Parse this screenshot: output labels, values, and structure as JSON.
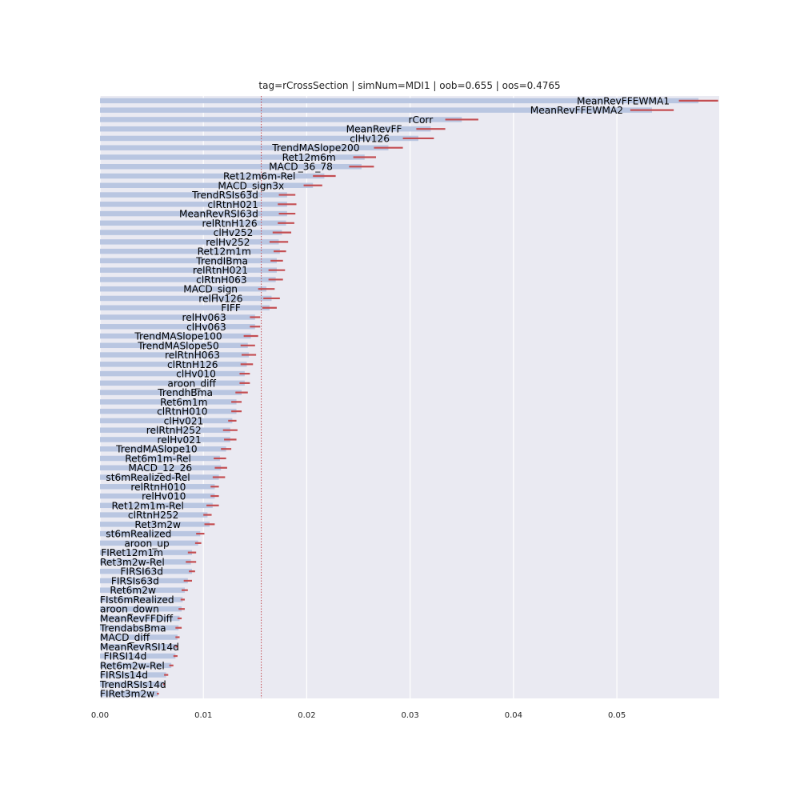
{
  "chart_data": {
    "type": "bar",
    "orientation": "horizontal",
    "title": "tag=rCrossSection | simNum=MDI1 | oob=0.655 | oos=0.4765",
    "xlabel": "",
    "ylabel": "",
    "xlim": [
      0,
      0.0599
    ],
    "xticks": [
      "0.00",
      "0.01",
      "0.02",
      "0.03",
      "0.04",
      "0.05"
    ],
    "xtick_values": [
      0,
      0.01,
      0.02,
      0.03,
      0.04,
      0.05
    ],
    "grid": true,
    "reference_line": 0.0156,
    "bar_color": "#b9c6e1",
    "error_color": "#c44e52",
    "reference_color": "#c44e52",
    "plot_background": "#eaeaf2",
    "categories": [
      "MeanRevFFEWMA1",
      "MeanRevFFEWMA2",
      "rCorr",
      "MeanRevFF",
      "clHv126",
      "TrendMASlope200",
      "Ret12m6m",
      "MACD_36_78",
      "Ret12m6m-Rel",
      "MACD_sign3x",
      "TrendRSIs63d",
      "clRtnH021",
      "MeanRevRSI63d",
      "relRtnH126",
      "clHv252",
      "relHv252",
      "Ret12m1m",
      "TrendIBma",
      "relRtnH021",
      "clRtnH063",
      "MACD_sign",
      "relHv126",
      "FIFF",
      "relHv063",
      "clHv063",
      "TrendMASlope100",
      "TrendMASlope50",
      "relRtnH063",
      "clRtnH126",
      "clHv010",
      "aroon_diff",
      "TrendhBma",
      "Ret6m1m",
      "clRtnH010",
      "clHv021",
      "relRtnH252",
      "relHv021",
      "TrendMASlope10",
      "Ret6m1m-Rel",
      "MACD_12_26",
      "st6mRealized-Rel",
      "relRtnH010",
      "relHv010",
      "Ret12m1m-Rel",
      "clRtnH252",
      "Ret3m2w",
      "st6mRealized",
      "aroon_up",
      "FIRet12m1m",
      "Ret3m2w-Rel",
      "FIRSI63d",
      "FIRSIs63d",
      "Ret6m2w",
      "FIst6mRealized",
      "aroon_down",
      "MeanRevFFDiff",
      "TrendabsBma",
      "MACD_diff",
      "MeanRevRSI14d",
      "FIRSI14d",
      "Ret6m2w-Rel",
      "FIRSIs14d",
      "TrendRSIs14d",
      "FIRet3m2w"
    ],
    "values": [
      0.0579,
      0.0534,
      0.035,
      0.032,
      0.0308,
      0.0279,
      0.0256,
      0.0253,
      0.0217,
      0.0206,
      0.0181,
      0.0181,
      0.0181,
      0.018,
      0.0176,
      0.0173,
      0.0174,
      0.0171,
      0.0171,
      0.017,
      0.0161,
      0.0166,
      0.0164,
      0.015,
      0.015,
      0.0146,
      0.0143,
      0.0144,
      0.0142,
      0.014,
      0.014,
      0.0137,
      0.0132,
      0.0132,
      0.0128,
      0.0126,
      0.0126,
      0.0122,
      0.0116,
      0.0117,
      0.0115,
      0.0111,
      0.0111,
      0.0109,
      0.0104,
      0.0106,
      0.0097,
      0.0095,
      0.0089,
      0.0088,
      0.0089,
      0.0085,
      0.0082,
      0.008,
      0.0079,
      0.0077,
      0.0076,
      0.0075,
      0.0074,
      0.0073,
      0.0069,
      0.0064,
      0.0062,
      0.0056
    ],
    "errors": [
      0.0019,
      0.0021,
      0.0016,
      0.0014,
      0.0015,
      0.0014,
      0.0011,
      0.0012,
      0.0011,
      0.0009,
      0.0008,
      0.0009,
      0.0008,
      0.0008,
      0.0009,
      0.0009,
      0.0006,
      0.0006,
      0.0008,
      0.0007,
      0.0008,
      0.0008,
      0.0007,
      0.0005,
      0.0005,
      0.0007,
      0.0007,
      0.0007,
      0.0006,
      0.0005,
      0.0005,
      0.0006,
      0.0005,
      0.0005,
      0.0004,
      0.0007,
      0.0006,
      0.0005,
      0.0006,
      0.0006,
      0.0006,
      0.0004,
      0.0004,
      0.0006,
      0.0004,
      0.0005,
      0.0004,
      0.0003,
      0.0004,
      0.0005,
      0.0003,
      0.0004,
      0.0003,
      0.0002,
      0.0003,
      0.0002,
      0.0003,
      0.0002,
      0.0001,
      0.0002,
      0.0002,
      0.0002,
      0.0001,
      0.0001
    ]
  }
}
